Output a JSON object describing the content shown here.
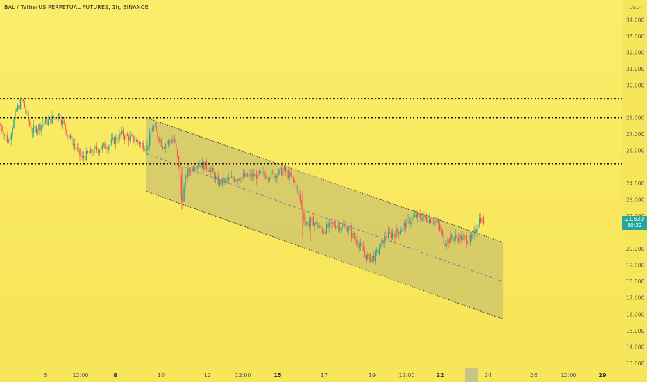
{
  "title": "BAL / TetherUS PERPETUAL FUTURES, 1h, BINANCE",
  "currency": "USDT",
  "colors": {
    "background": "#f7e65a",
    "up": "#26a69a",
    "down": "#ef5350",
    "channel_fill": "#9a9a7a",
    "current_price": "#26a69a"
  },
  "chart_data": {
    "type": "candlestick",
    "symbol": "BAL / TetherUS PERPETUAL FUTURES",
    "interval": "1h",
    "exchange": "BINANCE",
    "y_axis": {
      "unit": "USDT",
      "range": [
        12.7,
        35.2
      ],
      "ticks": [
        "34.000",
        "33.000",
        "32.000",
        "31.000",
        "30.000",
        "28.000",
        "27.000",
        "26.000",
        "24.000",
        "23.000",
        "22.000",
        "20.000",
        "19.000",
        "18.000",
        "17.000",
        "16.000",
        "15.000",
        "14.000",
        "13.000"
      ]
    },
    "x_axis": {
      "ticks": [
        {
          "label": "5",
          "bold": false
        },
        {
          "label": "12:00",
          "bold": false
        },
        {
          "label": "8",
          "bold": true
        },
        {
          "label": "10",
          "bold": false
        },
        {
          "label": "12",
          "bold": false
        },
        {
          "label": "12:00",
          "bold": false
        },
        {
          "label": "15",
          "bold": true
        },
        {
          "label": "17",
          "bold": false
        },
        {
          "label": "19",
          "bold": false
        },
        {
          "label": "12:00",
          "bold": false
        },
        {
          "label": "22",
          "bold": true
        },
        {
          "label": "24",
          "bold": false
        },
        {
          "label": "26",
          "bold": false
        },
        {
          "label": "12:00",
          "bold": false
        },
        {
          "label": "29",
          "bold": true
        }
      ]
    },
    "horizontal_levels": [
      {
        "value": 29.164,
        "label": "29.164"
      },
      {
        "value": 28.003,
        "label": "28.003"
      },
      {
        "value": 25.201,
        "label": "25.201"
      }
    ],
    "current_price": {
      "value": 21.639,
      "label": "21.639",
      "countdown": "50:32"
    },
    "channel": {
      "type": "descending parallel channel",
      "upper_start": 28.0,
      "upper_end": 20.4,
      "lower_start": 23.5,
      "lower_end": 15.7,
      "mid_start": 25.8,
      "mid_end": 18.0
    },
    "price_path": [
      [
        0,
        27.6
      ],
      [
        12,
        26.5
      ],
      [
        24,
        28.5
      ],
      [
        32,
        29.1
      ],
      [
        45,
        27.2
      ],
      [
        58,
        27.5
      ],
      [
        70,
        27.8
      ],
      [
        85,
        28.2
      ],
      [
        100,
        26.8
      ],
      [
        118,
        25.5
      ],
      [
        135,
        26.0
      ],
      [
        155,
        26.3
      ],
      [
        175,
        27.0
      ],
      [
        195,
        26.6
      ],
      [
        212,
        26.2
      ],
      [
        220,
        27.5
      ],
      [
        235,
        26.3
      ],
      [
        250,
        26.7
      ],
      [
        258,
        25.0
      ],
      [
        262,
        22.8
      ],
      [
        268,
        24.5
      ],
      [
        282,
        25.2
      ],
      [
        300,
        25.0
      ],
      [
        316,
        24.0
      ],
      [
        335,
        24.3
      ],
      [
        355,
        24.4
      ],
      [
        375,
        24.5
      ],
      [
        395,
        24.5
      ],
      [
        410,
        24.8
      ],
      [
        425,
        24.0
      ],
      [
        435,
        22.5
      ],
      [
        440,
        21.5
      ],
      [
        450,
        21.7
      ],
      [
        465,
        21.1
      ],
      [
        480,
        21.5
      ],
      [
        500,
        21.3
      ],
      [
        518,
        20.2
      ],
      [
        530,
        19.4
      ],
      [
        540,
        19.5
      ],
      [
        555,
        20.7
      ],
      [
        575,
        21.1
      ],
      [
        590,
        21.7
      ],
      [
        600,
        22.0
      ],
      [
        620,
        21.8
      ],
      [
        630,
        21.6
      ],
      [
        640,
        20.4
      ],
      [
        655,
        20.7
      ],
      [
        670,
        20.6
      ],
      [
        680,
        20.5
      ],
      [
        688,
        21.6
      ],
      [
        692,
        21.9
      ],
      [
        697,
        21.6
      ]
    ]
  }
}
